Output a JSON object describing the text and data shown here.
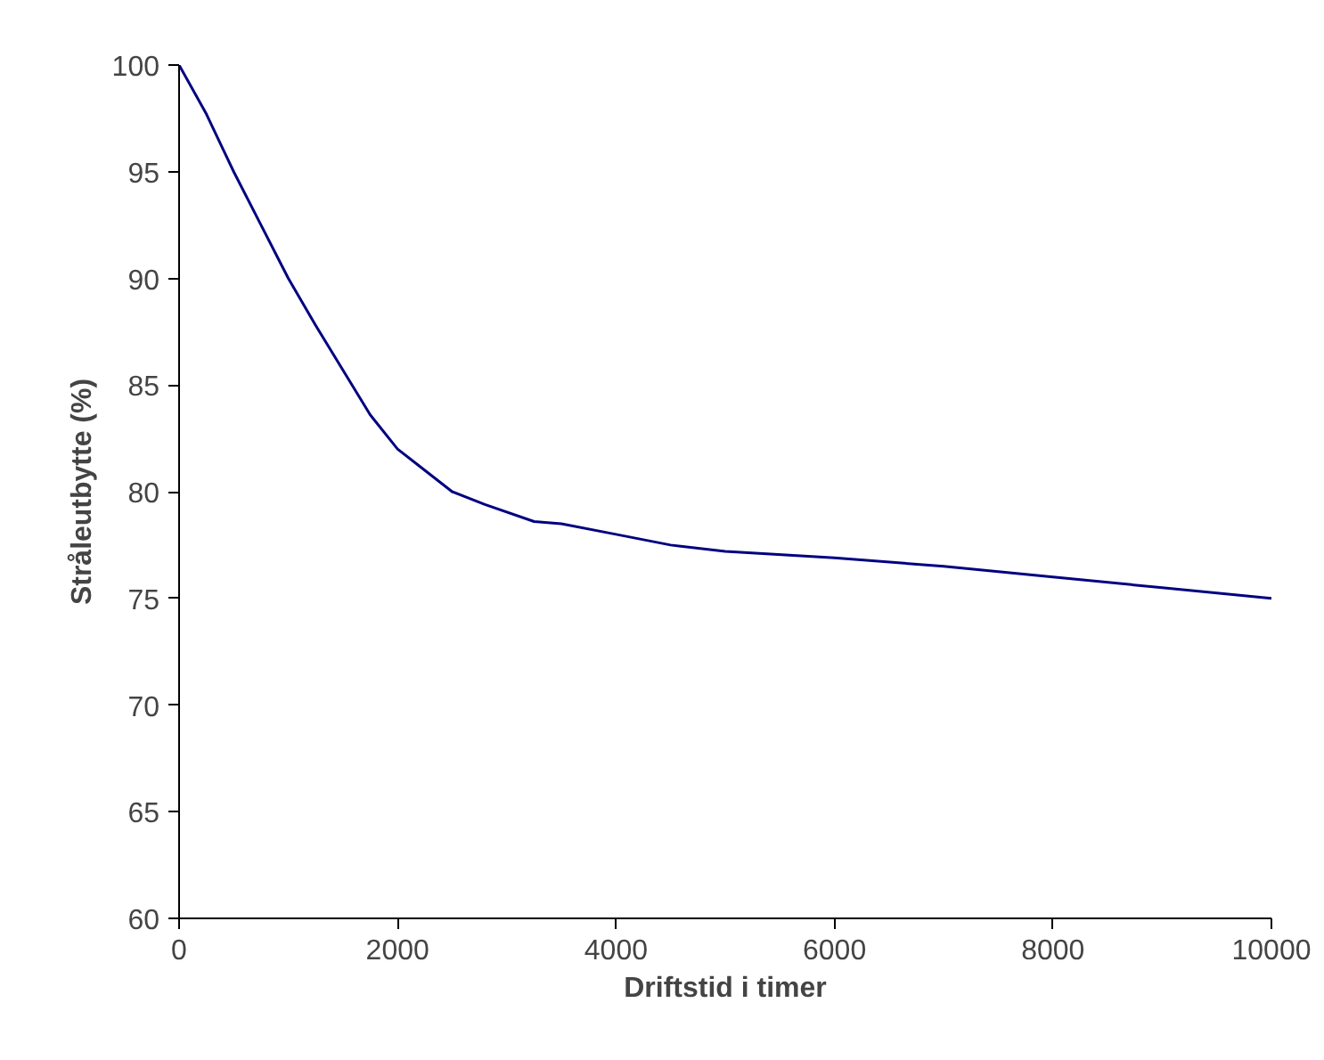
{
  "chart_data": {
    "type": "line",
    "xlabel": "Driftstid i timer",
    "ylabel": "Stråleutbytte (%)",
    "x": [
      0,
      250,
      500,
      750,
      1000,
      1250,
      1500,
      1750,
      2000,
      2200,
      2500,
      2800,
      3250,
      3500,
      4000,
      4500,
      5000,
      6000,
      7000,
      8000,
      9000,
      10000
    ],
    "series": [
      {
        "color": "#000080",
        "values": [
          100,
          97.7,
          95,
          92.5,
          90,
          87.8,
          85.7,
          83.6,
          82,
          81.2,
          80,
          79.4,
          78.6,
          78.5,
          78,
          77.5,
          77.2,
          76.9,
          76.5,
          76,
          75.5,
          75
        ]
      }
    ],
    "xlim": [
      0,
      10000
    ],
    "xticks": [
      0,
      2000,
      4000,
      6000,
      8000,
      10000
    ],
    "ylim": [
      60,
      100
    ],
    "yticks": [
      60,
      65,
      70,
      75,
      80,
      85,
      90,
      95,
      100
    ],
    "grid": false,
    "marker": "none",
    "line_style": "solid"
  }
}
